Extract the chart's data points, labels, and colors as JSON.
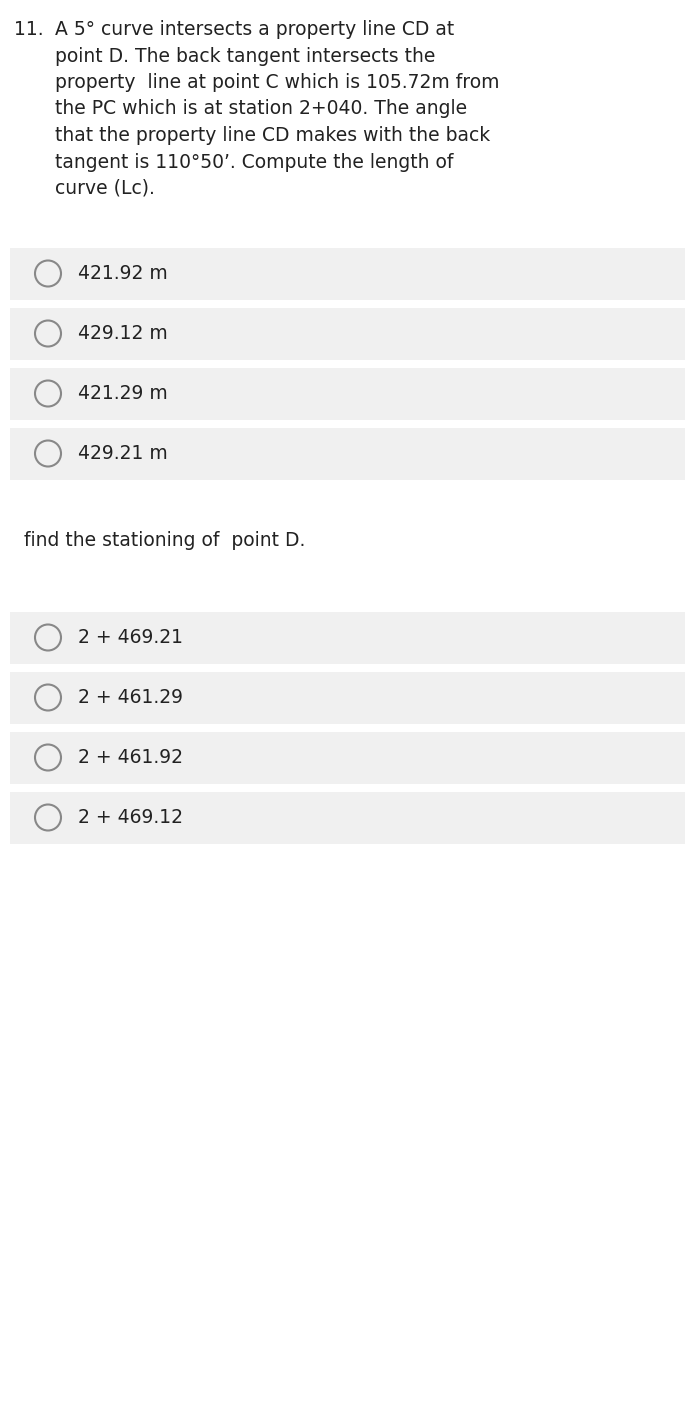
{
  "background_color": "#ffffff",
  "question_number": "11.",
  "question_text_lines": [
    "A 5° curve intersects a property line CD at",
    "point D. The back tangent intersects the",
    "property  line at point C which is 105.72m from",
    "the PC which is at station 2+040. The angle",
    "that the property line CD makes with the back",
    "tangent is 110°50’. Compute the length of",
    "curve (Lc)."
  ],
  "options_section1": [
    "421.92 m",
    "429.12 m",
    "421.29 m",
    "429.21 m"
  ],
  "sub_question": "find the stationing of  point D.",
  "options_section2": [
    "2 + 469.21",
    "2 + 461.29",
    "2 + 461.92",
    "2 + 469.12"
  ],
  "option_bg_color": "#f0f0f0",
  "option_text_color": "#222222",
  "question_text_color": "#222222",
  "circle_color": "#888888",
  "font_size_question": 13.5,
  "font_size_option": 13.5,
  "font_size_subquestion": 13.5
}
